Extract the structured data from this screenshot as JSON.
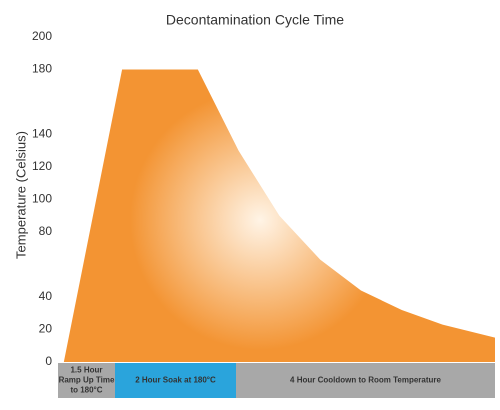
{
  "chart_data": {
    "type": "area",
    "title": "Decontamination Cycle Time",
    "y_label": "Temperature (Celsius)",
    "x": [
      0.1,
      1.1,
      2.4,
      3.1,
      3.8,
      4.5,
      5.2,
      5.9,
      6.6,
      7.5
    ],
    "values": [
      0,
      180,
      180,
      130,
      90,
      63,
      44,
      32,
      23,
      15
    ],
    "color": "#f39433",
    "xlim": [
      0,
      7.5
    ],
    "ylim": [
      0,
      200
    ],
    "yticks": [
      0,
      20,
      40,
      80,
      100,
      120,
      140,
      180,
      200
    ],
    "grid": false,
    "phases": [
      {
        "label": [
          "1.5 Hour",
          "Ramp Up Time",
          "to 180°C"
        ],
        "color": "#a8a8a8"
      },
      {
        "label": [
          "2 Hour Soak at 180°C"
        ],
        "color": "#2aa4dc"
      },
      {
        "label": [
          "4 Hour Cooldown to Room Temperature"
        ],
        "color": "#a8a8a8"
      }
    ]
  }
}
